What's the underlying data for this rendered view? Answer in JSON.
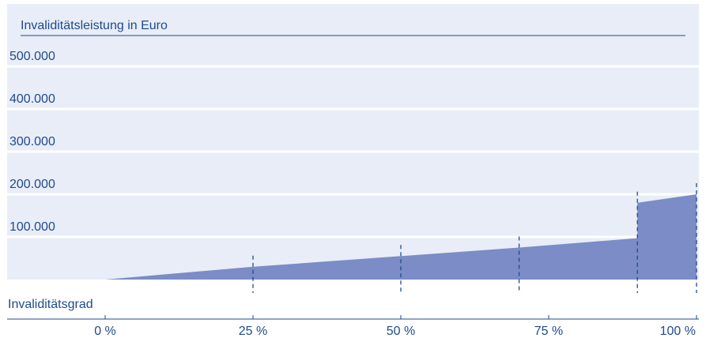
{
  "chart_data": {
    "type": "area",
    "title": "Invaliditätsleistung in Euro",
    "xlabel": "Invaliditätsgrad",
    "ylabel": "",
    "ylim": [
      0,
      600000
    ],
    "xlim": [
      0,
      100
    ],
    "y_tick_labels": [
      {
        "value": 100000,
        "label": "100.000"
      },
      {
        "value": 200000,
        "label": "200.000"
      },
      {
        "value": 300000,
        "label": "300.000"
      },
      {
        "value": 400000,
        "label": "400.000"
      },
      {
        "value": 500000,
        "label": "500.000"
      }
    ],
    "x_tick_labels": [
      {
        "value": 0,
        "label": "0 %"
      },
      {
        "value": 25,
        "label": "25 %"
      },
      {
        "value": 50,
        "label": "50 %"
      },
      {
        "value": 75,
        "label": "75 %"
      },
      {
        "value": 100,
        "label": "100 %"
      }
    ],
    "marker_lines_x": [
      25,
      50,
      70,
      90,
      100
    ],
    "series": [
      {
        "x": [
          0,
          25,
          50,
          70,
          90,
          90,
          100
        ],
        "y": [
          0,
          30000,
          55000,
          75000,
          97000,
          180000,
          200000
        ]
      }
    ],
    "grid": true,
    "colors": {
      "area_fill": "#7b8cc6",
      "panel_background": "#e8edf7",
      "gridline": "#ffffff",
      "text": "#1f4a8c",
      "axis_line": "#1f4a8c",
      "marker_line": "#1f4a8c"
    }
  }
}
